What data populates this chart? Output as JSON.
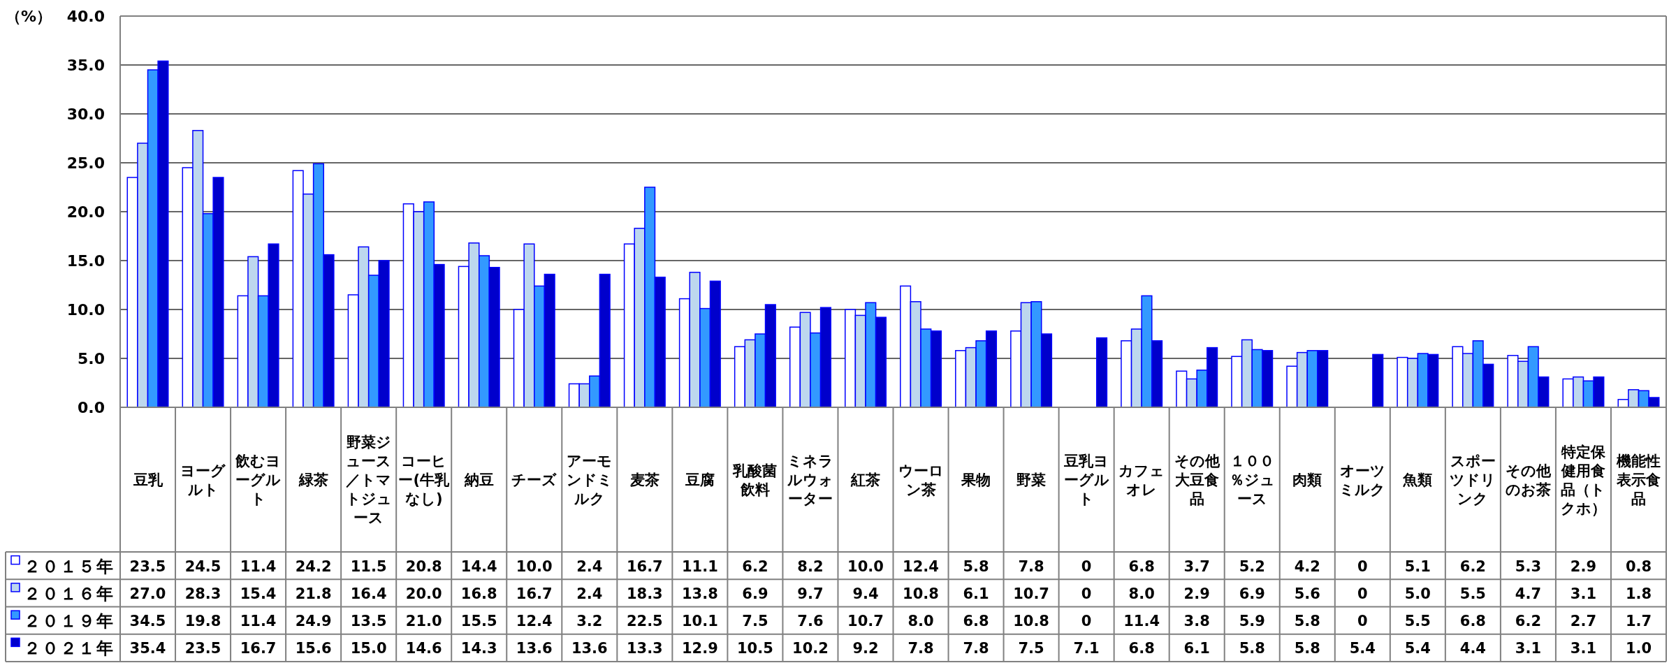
{
  "chart_data": {
    "type": "bar",
    "ylabel": "（%）",
    "ylim": [
      0,
      40
    ],
    "yticks": [
      {
        "value": 0,
        "label": "0.0"
      },
      {
        "value": 5,
        "label": "5.0"
      },
      {
        "value": 10,
        "label": "10.0"
      },
      {
        "value": 15,
        "label": "15.0"
      },
      {
        "value": 20,
        "label": "20.0"
      },
      {
        "value": 25,
        "label": "25.0"
      },
      {
        "value": 30,
        "label": "30.0"
      },
      {
        "value": 35,
        "label": "35.0"
      },
      {
        "value": 40,
        "label": "40.0"
      }
    ],
    "grid": "y",
    "legend": "bottom",
    "categories": [
      "豆乳",
      "ヨーグルト",
      "飲むヨーグルト",
      "緑茶",
      "野菜ジュース／トマトジュース",
      "コーヒー(牛乳なし)",
      "納豆",
      "チーズ",
      "アーモンドミルク",
      "麦茶",
      "豆腐",
      "乳酸菌飲料",
      "ミネラルウォーター",
      "紅茶",
      "ウーロン茶",
      "果物",
      "野菜",
      "豆乳ヨーグルト",
      "カフェオレ",
      "その他大豆食品",
      "１００％ジュース",
      "肉類",
      "オーツミルク",
      "魚類",
      "スポーツドリンク",
      "その他のお茶",
      "特定保健用食品（トクホ）",
      "機能性表示食品"
    ],
    "series": [
      {
        "name": "２０１５年",
        "color": "#ffffff",
        "values": [
          23.5,
          24.5,
          11.4,
          24.2,
          11.5,
          20.8,
          14.4,
          10.0,
          2.4,
          16.7,
          11.1,
          6.2,
          8.2,
          10.0,
          12.4,
          5.8,
          7.8,
          0,
          6.8,
          3.7,
          5.2,
          4.2,
          0,
          5.1,
          6.2,
          5.3,
          2.9,
          0.8
        ],
        "value_labels": [
          "23.5",
          "24.5",
          "11.4",
          "24.2",
          "11.5",
          "20.8",
          "14.4",
          "10.0",
          "2.4",
          "16.7",
          "11.1",
          "6.2",
          "8.2",
          "10.0",
          "12.4",
          "5.8",
          "7.8",
          "0",
          "6.8",
          "3.7",
          "5.2",
          "4.2",
          "0",
          "5.1",
          "6.2",
          "5.3",
          "2.9",
          "0.8"
        ]
      },
      {
        "name": "２０１６年",
        "color": "#bdd7ee",
        "values": [
          27.0,
          28.3,
          15.4,
          21.8,
          16.4,
          20.0,
          16.8,
          16.7,
          2.4,
          18.3,
          13.8,
          6.9,
          9.7,
          9.4,
          10.8,
          6.1,
          10.7,
          0,
          8.0,
          2.9,
          6.9,
          5.6,
          0,
          5.0,
          5.5,
          4.7,
          3.1,
          1.8
        ],
        "value_labels": [
          "27.0",
          "28.3",
          "15.4",
          "21.8",
          "16.4",
          "20.0",
          "16.8",
          "16.7",
          "2.4",
          "18.3",
          "13.8",
          "6.9",
          "9.7",
          "9.4",
          "10.8",
          "6.1",
          "10.7",
          "0",
          "8.0",
          "2.9",
          "6.9",
          "5.6",
          "0",
          "5.0",
          "5.5",
          "4.7",
          "3.1",
          "1.8"
        ]
      },
      {
        "name": "２０１９年",
        "color": "#3399ff",
        "values": [
          34.5,
          19.8,
          11.4,
          24.9,
          13.5,
          21.0,
          15.5,
          12.4,
          3.2,
          22.5,
          10.1,
          7.5,
          7.6,
          10.7,
          8.0,
          6.8,
          10.8,
          0,
          11.4,
          3.8,
          5.9,
          5.8,
          0,
          5.5,
          6.8,
          6.2,
          2.7,
          1.7
        ],
        "value_labels": [
          "34.5",
          "19.8",
          "11.4",
          "24.9",
          "13.5",
          "21.0",
          "15.5",
          "12.4",
          "3.2",
          "22.5",
          "10.1",
          "7.5",
          "7.6",
          "10.7",
          "8.0",
          "6.8",
          "10.8",
          "0",
          "11.4",
          "3.8",
          "5.9",
          "5.8",
          "0",
          "5.5",
          "6.8",
          "6.2",
          "2.7",
          "1.7"
        ]
      },
      {
        "name": "２０２１年",
        "color": "#0000cc",
        "values": [
          35.4,
          23.5,
          16.7,
          15.6,
          15.0,
          14.6,
          14.3,
          13.6,
          13.6,
          13.3,
          12.9,
          10.5,
          10.2,
          9.2,
          7.8,
          7.8,
          7.5,
          7.1,
          6.8,
          6.1,
          5.8,
          5.8,
          5.4,
          5.4,
          4.4,
          3.1,
          3.1,
          1.0
        ],
        "value_labels": [
          "35.4",
          "23.5",
          "16.7",
          "15.6",
          "15.0",
          "14.6",
          "14.3",
          "13.6",
          "13.6",
          "13.3",
          "12.9",
          "10.5",
          "10.2",
          "9.2",
          "7.8",
          "7.8",
          "7.5",
          "7.1",
          "6.8",
          "6.1",
          "5.8",
          "5.8",
          "5.4",
          "5.4",
          "4.4",
          "3.1",
          "3.1",
          "1.0"
        ]
      }
    ]
  }
}
